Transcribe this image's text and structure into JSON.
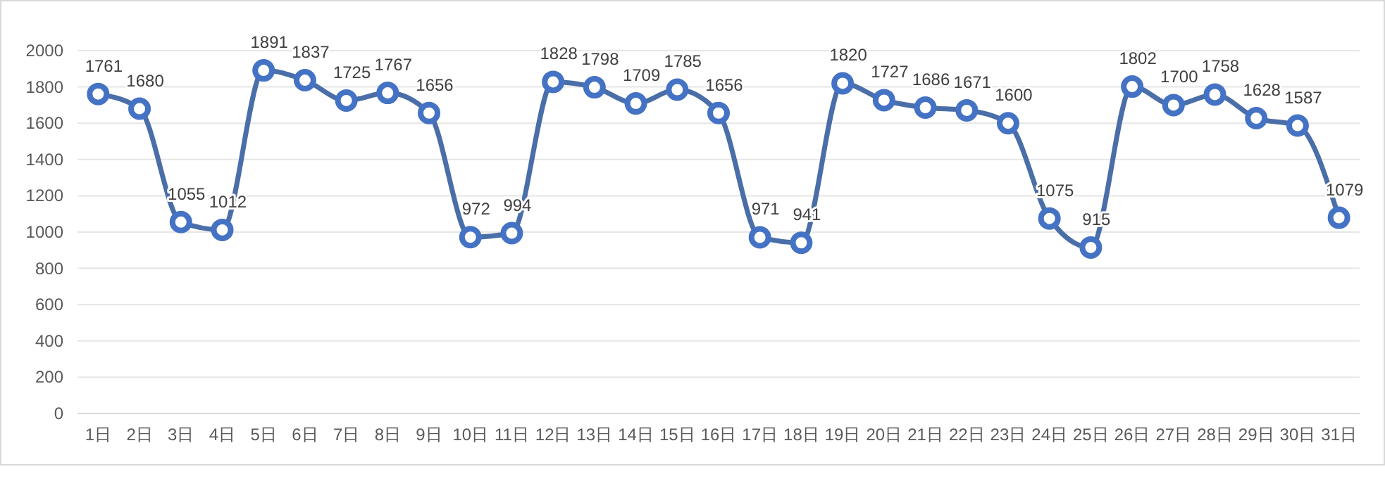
{
  "chart_data": {
    "type": "line",
    "categories": [
      "1日",
      "2日",
      "3日",
      "4日",
      "5日",
      "6日",
      "7日",
      "8日",
      "9日",
      "10日",
      "11日",
      "12日",
      "13日",
      "14日",
      "15日",
      "16日",
      "17日",
      "18日",
      "19日",
      "20日",
      "21日",
      "22日",
      "23日",
      "24日",
      "25日",
      "26日",
      "27日",
      "28日",
      "29日",
      "30日",
      "31日"
    ],
    "series": [
      {
        "color": "#4a6ea8",
        "values": [
          1761,
          1680,
          1055,
          1012,
          1891,
          1837,
          1725,
          1767,
          1656,
          972,
          994,
          1828,
          1798,
          1709,
          1785,
          1656,
          971,
          941,
          1820,
          1727,
          1686,
          1671,
          1600,
          1075,
          915,
          1802,
          1700,
          1758,
          1628,
          1587,
          1079
        ]
      }
    ],
    "ylim": [
      0,
      2000
    ],
    "yticks": [
      0,
      200,
      400,
      600,
      800,
      1000,
      1200,
      1400,
      1600,
      1800,
      2000
    ],
    "grid": "y",
    "marker": "circle",
    "line_style": "solid",
    "data_labels": true
  }
}
